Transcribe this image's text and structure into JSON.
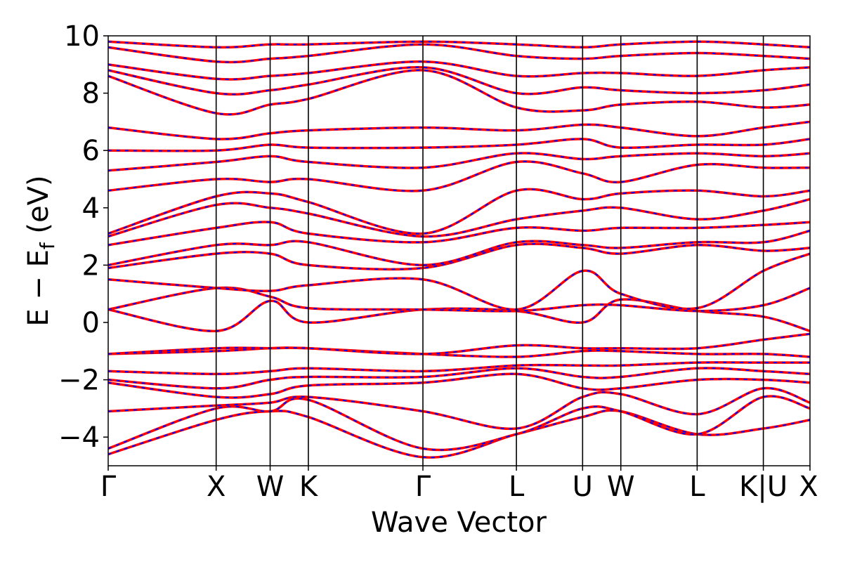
{
  "chart_data": {
    "type": "line",
    "title": "",
    "xlabel": "Wave Vector",
    "ylabel": "E − E_f (eV)",
    "ylabel_main": "E − E",
    "ylabel_sub": "f",
    "ylabel_unit": "(eV)",
    "ylim": [
      -5,
      10
    ],
    "xlim": [
      0,
      6.5
    ],
    "yticks": [
      -4,
      -2,
      0,
      2,
      4,
      6,
      8,
      10
    ],
    "ytick_labels": [
      "−4",
      "−2",
      "0",
      "2",
      "4",
      "6",
      "8",
      "10"
    ],
    "kpoints": [
      {
        "label": "Γ",
        "pos": 0.0
      },
      {
        "label": "X",
        "pos": 1.0
      },
      {
        "label": "W",
        "pos": 1.5
      },
      {
        "label": "K",
        "pos": 1.854
      },
      {
        "label": "Γ",
        "pos": 2.915
      },
      {
        "label": "L",
        "pos": 3.781
      },
      {
        "label": "U",
        "pos": 4.394
      },
      {
        "label": "W",
        "pos": 4.748
      },
      {
        "label": "L",
        "pos": 5.455
      },
      {
        "label": "K|U",
        "pos": 6.068
      },
      {
        "label": "X",
        "pos": 6.5
      }
    ],
    "grid": false,
    "legend": "none",
    "colors": {
      "series_a": "#ff0000",
      "series_b": "#0000ff"
    },
    "bands": [
      {
        "k": [
          0,
          1.0,
          1.5,
          1.854,
          2.915,
          3.781,
          4.394,
          4.748,
          5.455,
          6.068,
          6.5
        ],
        "e": [
          -4.6,
          -3.4,
          -3.1,
          -3.3,
          -4.7,
          -3.9,
          -3.3,
          -3.1,
          -3.9,
          -3.7,
          -3.4
        ]
      },
      {
        "k": [
          0,
          1.0,
          1.5,
          1.854,
          2.915,
          3.781,
          4.394,
          4.748,
          5.455,
          6.068,
          6.5
        ],
        "e": [
          -4.4,
          -3.0,
          -3.1,
          -2.7,
          -4.4,
          -3.9,
          -3.0,
          -3.1,
          -3.9,
          -2.6,
          -3.0
        ]
      },
      {
        "k": [
          0,
          1.0,
          1.5,
          1.854,
          2.915,
          3.781,
          4.394,
          4.748,
          5.455,
          6.068,
          6.5
        ],
        "e": [
          -3.1,
          -2.9,
          -2.8,
          -2.6,
          -3.1,
          -3.7,
          -2.6,
          -2.5,
          -3.2,
          -2.3,
          -2.8
        ]
      },
      {
        "k": [
          0,
          1.0,
          1.5,
          1.854,
          2.915,
          3.781,
          4.394,
          4.748,
          5.455,
          6.068,
          6.5
        ],
        "e": [
          -2.1,
          -2.6,
          -2.5,
          -2.2,
          -2.1,
          -1.8,
          -2.3,
          -2.3,
          -2.0,
          -2.0,
          -2.1
        ]
      },
      {
        "k": [
          0,
          1.0,
          1.5,
          1.854,
          2.915,
          3.781,
          4.394,
          4.748,
          5.455,
          6.068,
          6.5
        ],
        "e": [
          -2.0,
          -2.3,
          -2.0,
          -1.9,
          -1.9,
          -1.6,
          -1.9,
          -1.9,
          -1.6,
          -1.7,
          -1.8
        ]
      },
      {
        "k": [
          0,
          1.0,
          1.5,
          1.854,
          2.915,
          3.781,
          4.394,
          4.748,
          5.455,
          6.068,
          6.5
        ],
        "e": [
          -1.7,
          -1.8,
          -1.7,
          -1.6,
          -1.7,
          -1.5,
          -1.5,
          -1.5,
          -1.4,
          -1.4,
          -1.4
        ]
      },
      {
        "k": [
          0,
          1.0,
          1.5,
          1.854,
          2.915,
          3.781,
          4.394,
          4.748,
          5.455,
          6.068,
          6.5
        ],
        "e": [
          -1.1,
          -1.0,
          -0.9,
          -0.9,
          -1.1,
          -1.2,
          -1.0,
          -1.0,
          -1.1,
          -1.1,
          -1.2
        ]
      },
      {
        "k": [
          0,
          1.0,
          1.5,
          1.854,
          2.915,
          3.781,
          4.394,
          4.748,
          5.455,
          6.068,
          6.5
        ],
        "e": [
          -1.1,
          -0.9,
          -0.9,
          -0.9,
          -1.1,
          -0.8,
          -0.9,
          -0.9,
          -0.9,
          -0.6,
          -0.4
        ]
      },
      {
        "k": [
          0,
          1.0,
          1.5,
          1.854,
          2.915,
          3.781,
          4.394,
          4.748,
          5.455,
          6.068,
          6.5
        ],
        "e": [
          0.45,
          -0.3,
          0.75,
          0.0,
          0.45,
          0.4,
          0.0,
          0.8,
          0.4,
          0.2,
          -0.3
        ]
      },
      {
        "k": [
          0,
          1.0,
          1.5,
          1.854,
          2.915,
          3.781,
          4.394,
          4.748,
          5.455,
          6.068,
          6.5
        ],
        "e": [
          0.45,
          1.2,
          0.9,
          0.5,
          0.45,
          0.4,
          0.6,
          0.6,
          0.4,
          0.6,
          1.2
        ]
      },
      {
        "k": [
          0,
          1.0,
          1.5,
          1.854,
          2.915,
          3.781,
          4.394,
          4.748,
          5.455,
          6.068,
          6.5
        ],
        "e": [
          1.5,
          1.2,
          1.1,
          1.3,
          1.5,
          0.45,
          1.8,
          1.0,
          0.5,
          1.8,
          2.4
        ]
      },
      {
        "k": [
          0,
          1.0,
          1.5,
          1.854,
          2.915,
          3.781,
          4.394,
          4.748,
          5.455,
          6.068,
          6.5
        ],
        "e": [
          1.9,
          2.4,
          2.4,
          2.0,
          1.9,
          2.7,
          2.6,
          2.4,
          2.7,
          2.5,
          2.6
        ]
      },
      {
        "k": [
          0,
          1.0,
          1.5,
          1.854,
          2.915,
          3.781,
          4.394,
          4.748,
          5.455,
          6.068,
          6.5
        ],
        "e": [
          2.0,
          2.7,
          2.7,
          2.8,
          2.0,
          2.8,
          2.7,
          2.6,
          2.8,
          2.8,
          3.2
        ]
      },
      {
        "k": [
          0,
          1.0,
          1.5,
          1.854,
          2.915,
          3.781,
          4.394,
          4.748,
          5.455,
          6.068,
          6.5
        ],
        "e": [
          2.7,
          3.3,
          3.5,
          3.1,
          2.8,
          3.3,
          3.2,
          3.3,
          3.3,
          3.4,
          3.5
        ]
      },
      {
        "k": [
          0,
          1.0,
          1.5,
          1.854,
          2.915,
          3.781,
          4.394,
          4.748,
          5.455,
          6.068,
          6.5
        ],
        "e": [
          3.0,
          4.1,
          4.0,
          3.8,
          3.0,
          3.6,
          3.9,
          4.0,
          3.6,
          3.9,
          4.3
        ]
      },
      {
        "k": [
          0,
          1.0,
          1.5,
          1.854,
          2.915,
          3.781,
          4.394,
          4.748,
          5.455,
          6.068,
          6.5
        ],
        "e": [
          3.1,
          4.4,
          4.5,
          4.2,
          3.1,
          4.6,
          4.3,
          4.5,
          4.6,
          4.4,
          4.6
        ]
      },
      {
        "k": [
          0,
          1.0,
          1.5,
          1.854,
          2.915,
          3.781,
          4.394,
          4.748,
          5.455,
          6.068,
          6.5
        ],
        "e": [
          4.6,
          5.0,
          4.9,
          5.0,
          4.6,
          5.6,
          5.2,
          4.9,
          5.5,
          5.4,
          5.4
        ]
      },
      {
        "k": [
          0,
          1.0,
          1.5,
          1.854,
          2.915,
          3.781,
          4.394,
          4.748,
          5.455,
          6.068,
          6.5
        ],
        "e": [
          5.3,
          5.6,
          5.8,
          5.6,
          5.4,
          5.9,
          5.7,
          5.8,
          5.9,
          5.8,
          5.9
        ]
      },
      {
        "k": [
          0,
          1.0,
          1.5,
          1.854,
          2.915,
          3.781,
          4.394,
          4.748,
          5.455,
          6.068,
          6.5
        ],
        "e": [
          6.0,
          6.0,
          6.2,
          6.1,
          6.1,
          6.2,
          6.4,
          6.1,
          6.2,
          6.2,
          6.4
        ]
      },
      {
        "k": [
          0,
          1.0,
          1.5,
          1.854,
          2.915,
          3.781,
          4.394,
          4.748,
          5.455,
          6.068,
          6.5
        ],
        "e": [
          6.8,
          6.4,
          6.6,
          6.7,
          6.8,
          6.7,
          6.9,
          6.8,
          6.5,
          6.8,
          7.0
        ]
      },
      {
        "k": [
          0,
          1.0,
          1.5,
          1.854,
          2.915,
          3.781,
          4.394,
          4.748,
          5.455,
          6.068,
          6.5
        ],
        "e": [
          8.6,
          7.3,
          7.6,
          7.8,
          8.8,
          7.5,
          7.4,
          7.6,
          7.7,
          7.5,
          7.6
        ]
      },
      {
        "k": [
          0,
          1.0,
          1.5,
          1.854,
          2.915,
          3.781,
          4.394,
          4.748,
          5.455,
          6.068,
          6.5
        ],
        "e": [
          8.8,
          8.0,
          8.1,
          8.3,
          8.9,
          8.0,
          8.2,
          8.1,
          8.0,
          8.1,
          8.3
        ]
      },
      {
        "k": [
          0,
          1.0,
          1.5,
          1.854,
          2.915,
          3.781,
          4.394,
          4.748,
          5.455,
          6.068,
          6.5
        ],
        "e": [
          9.0,
          8.5,
          8.6,
          8.7,
          9.1,
          8.6,
          8.7,
          8.7,
          8.6,
          8.8,
          8.9
        ]
      },
      {
        "k": [
          0,
          1.0,
          1.5,
          1.854,
          2.915,
          3.781,
          4.394,
          4.748,
          5.455,
          6.068,
          6.5
        ],
        "e": [
          9.6,
          9.1,
          9.2,
          9.3,
          9.7,
          9.3,
          9.2,
          9.3,
          9.4,
          9.3,
          9.2
        ]
      },
      {
        "k": [
          0,
          1.0,
          1.5,
          1.854,
          2.915,
          3.781,
          4.394,
          4.748,
          5.455,
          6.068,
          6.5
        ],
        "e": [
          9.8,
          9.6,
          9.7,
          9.7,
          9.8,
          9.7,
          9.6,
          9.7,
          9.8,
          9.7,
          9.6
        ]
      }
    ]
  }
}
